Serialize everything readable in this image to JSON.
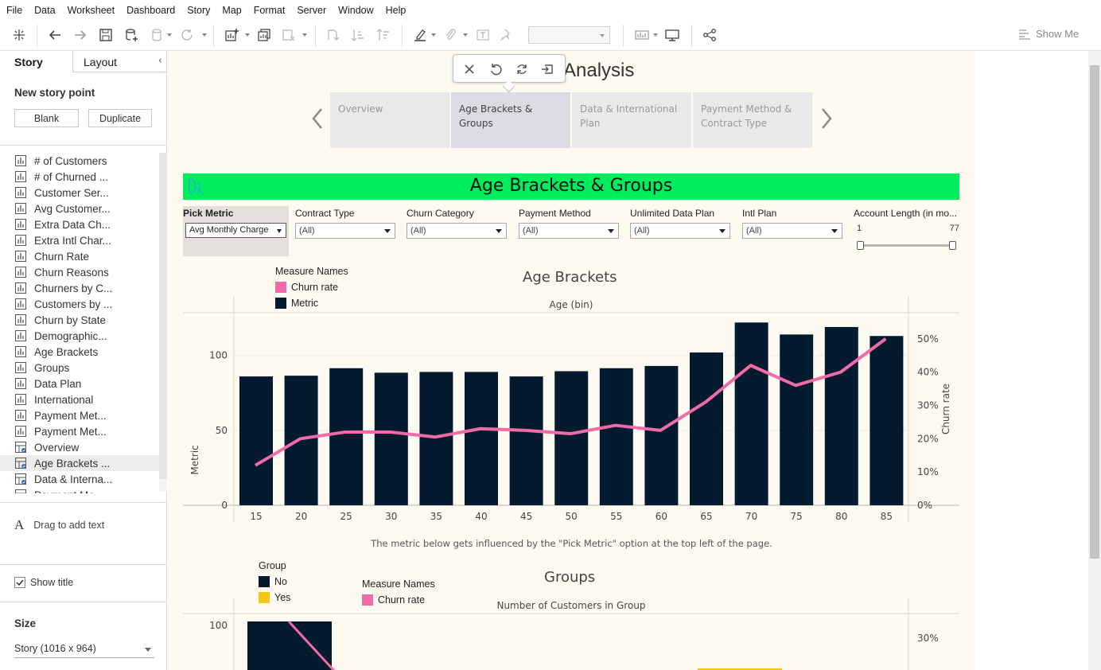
{
  "menu": [
    "File",
    "Data",
    "Worksheet",
    "Dashboard",
    "Story",
    "Map",
    "Format",
    "Server",
    "Window",
    "Help"
  ],
  "toolbar": {
    "show_me": "Show Me"
  },
  "left_panel": {
    "tabs": {
      "story": "Story",
      "layout": "Layout"
    },
    "new_story_point": "New story point",
    "blank_button": "Blank",
    "duplicate_button": "Duplicate",
    "sheets": [
      {
        "label": "# of Customers",
        "type": "sheet"
      },
      {
        "label": "# of Churned ...",
        "type": "sheet"
      },
      {
        "label": "Customer Ser...",
        "type": "sheet"
      },
      {
        "label": "Avg Customer...",
        "type": "sheet"
      },
      {
        "label": "Extra Data Ch...",
        "type": "sheet"
      },
      {
        "label": "Extra Intl Char...",
        "type": "sheet"
      },
      {
        "label": "Churn Rate",
        "type": "sheet"
      },
      {
        "label": "Churn Reasons",
        "type": "sheet"
      },
      {
        "label": "Churners by C...",
        "type": "sheet"
      },
      {
        "label": "Customers by ...",
        "type": "sheet"
      },
      {
        "label": "Churn by State",
        "type": "sheet"
      },
      {
        "label": "Demographic...",
        "type": "sheet"
      },
      {
        "label": "Age Brackets",
        "type": "sheet"
      },
      {
        "label": "Groups",
        "type": "sheet"
      },
      {
        "label": "Data Plan",
        "type": "sheet"
      },
      {
        "label": "International",
        "type": "sheet"
      },
      {
        "label": "Payment Met...",
        "type": "sheet"
      },
      {
        "label": "Payment Met...",
        "type": "sheet"
      },
      {
        "label": "Overview",
        "type": "dashboard"
      },
      {
        "label": "Age Brackets ...",
        "type": "dashboard",
        "selected": true
      },
      {
        "label": "Data & Interna...",
        "type": "dashboard"
      },
      {
        "label": "Payment Me...",
        "type": "dashboard"
      }
    ],
    "drag_text": "Drag to add text",
    "show_title": "Show title",
    "size_label": "Size",
    "size_value": "Story (1016 x 964)"
  },
  "story": {
    "title": "Analysis",
    "points": [
      {
        "label": "Overview",
        "active": false
      },
      {
        "label": "Age Brackets & Groups",
        "active": true
      },
      {
        "label": "Data & International Plan",
        "active": false
      },
      {
        "label": "Payment Method & Contract Type",
        "active": false
      }
    ]
  },
  "dashboard": {
    "title": "Age Brackets & Groups",
    "header_color": "#00ee5b",
    "pick_metric": {
      "label": "Pick Metric",
      "value": "Avg Monthly Charge"
    },
    "filters": [
      {
        "label": "Contract Type",
        "value": "(All)"
      },
      {
        "label": "Churn Category",
        "value": "(All)"
      },
      {
        "label": "Payment Method",
        "value": "(All)"
      },
      {
        "label": "Unlimited Data Plan",
        "value": "(All)"
      },
      {
        "label": "Intl Plan",
        "value": "(All)"
      }
    ],
    "account_length": {
      "label": "Account Length (in mo...",
      "min": "1",
      "max": "77"
    },
    "caption": "The metric below gets influenced by the \"Pick Metric\" option at the top left of the page."
  },
  "chart_data": [
    {
      "type": "bar",
      "title": "Age Brackets",
      "xlabel": "Age (bin)",
      "ylabel": "Metric",
      "y2label": "Churn rate",
      "legend_title": "Measure Names",
      "legend": [
        {
          "name": "Churn rate",
          "color": "#f06ba8"
        },
        {
          "name": "Metric",
          "color": "#041a2e"
        }
      ],
      "categories": [
        "15",
        "20",
        "25",
        "30",
        "35",
        "40",
        "45",
        "50",
        "55",
        "60",
        "65",
        "70",
        "75",
        "80",
        "85"
      ],
      "series": [
        {
          "name": "Metric",
          "kind": "bar",
          "color": "#041a2e",
          "values": [
            86,
            86.5,
            91.5,
            88.5,
            89,
            89,
            86,
            89.5,
            91.5,
            93,
            102,
            122,
            114,
            119,
            113
          ]
        },
        {
          "name": "Churn rate",
          "kind": "line",
          "axis": "right",
          "color": "#f06ba8",
          "values": [
            0.12,
            0.2,
            0.22,
            0.22,
            0.205,
            0.23,
            0.225,
            0.215,
            0.24,
            0.225,
            0.31,
            0.42,
            0.36,
            0.4,
            0.5
          ]
        }
      ],
      "ylim": [
        0,
        128
      ],
      "yticks": [
        0,
        50,
        100
      ],
      "y2lim": [
        0,
        0.55
      ],
      "y2ticks": [
        "0%",
        "10%",
        "20%",
        "30%",
        "40%",
        "50%"
      ]
    },
    {
      "type": "bar",
      "title": "Groups",
      "xlabel": "Number of Customers in Group",
      "group_legend_title": "Group",
      "group_legend": [
        {
          "name": "No",
          "color": "#041a2e"
        },
        {
          "name": "Yes",
          "color": "#f5c518"
        }
      ],
      "legend_title": "Measure Names",
      "legend": [
        {
          "name": "Churn rate",
          "color": "#f06ba8"
        }
      ],
      "yticks": [
        100
      ],
      "y2ticks": [
        "30%"
      ]
    }
  ]
}
